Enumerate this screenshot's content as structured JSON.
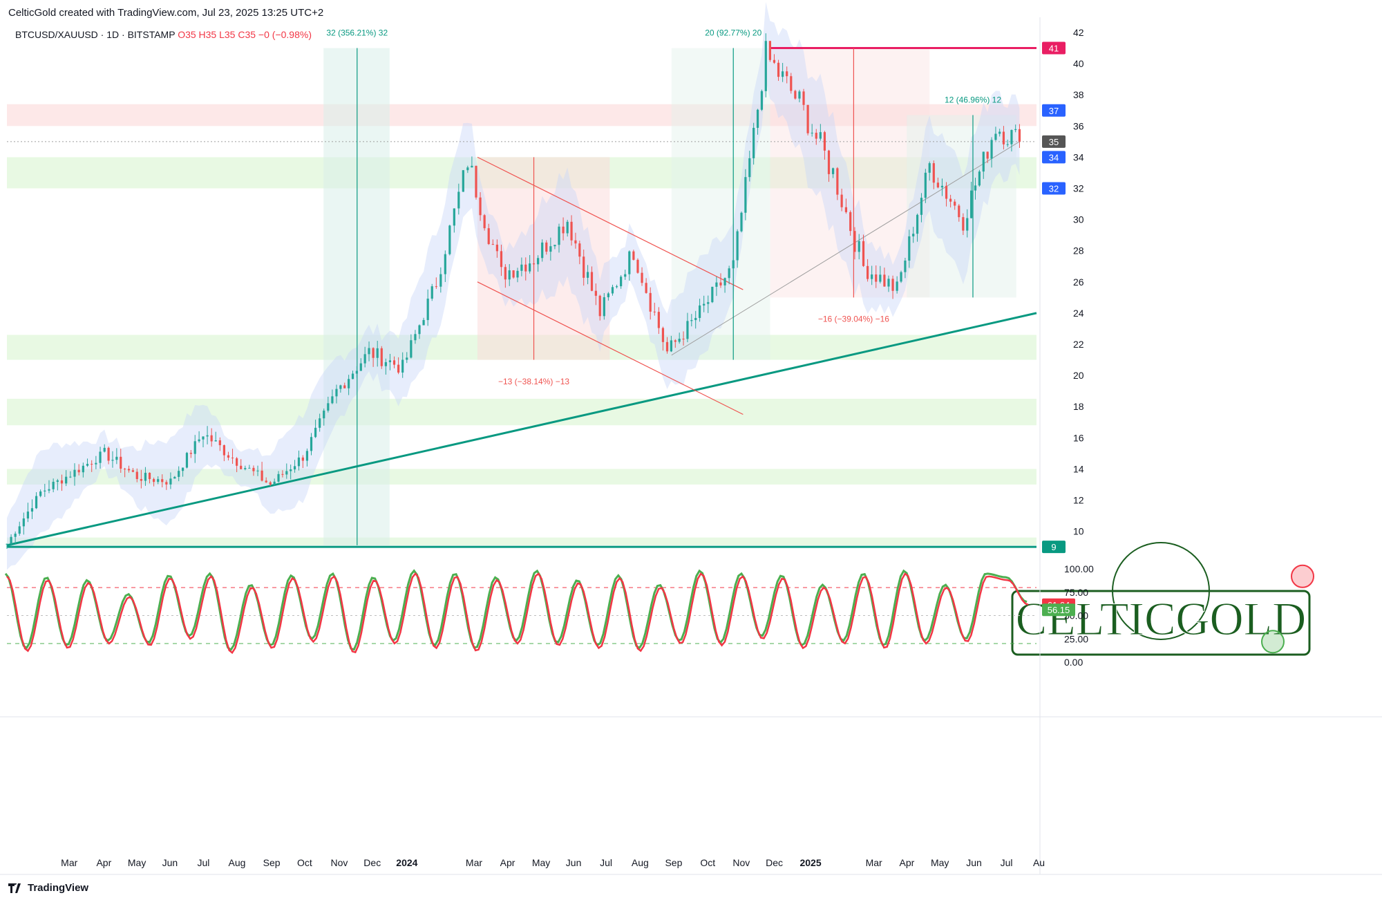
{
  "header": {
    "title": "CelticGold created with TradingView.com, Jul 23, 2025 13:25 UTC+2"
  },
  "symbol_line": {
    "prefix": "BTCUSD/XAUUSD · 1D · BITSTAMP",
    "ohlc": "O35  H35  L35  C35  −0 (−0.98%)"
  },
  "footer": {
    "brand": "TradingView"
  },
  "watermark": {
    "text": "CELTICGOLD"
  },
  "colors": {
    "up": "#26a69a",
    "down": "#ef5350",
    "trend": "#089981",
    "resistance": "#e91e63",
    "green_zone": "#e6f8e0",
    "red_zone": "#fde6e6",
    "band": "#c9d8f8"
  },
  "chart_data": [
    {
      "type": "candlestick",
      "title": "",
      "series_name": "",
      "x_axis": [
        "Mar",
        "Apr",
        "May",
        "Jun",
        "Jul",
        "Aug",
        "Sep",
        "Oct",
        "Nov",
        "Dec",
        "2024",
        "Mar",
        "Apr",
        "May",
        "Jun",
        "Jul",
        "Aug",
        "Sep",
        "Oct",
        "Nov",
        "Dec",
        "2025",
        "Mar",
        "Apr",
        "May",
        "Jun",
        "Jul",
        "Au"
      ],
      "y_ticks": [
        42,
        40,
        38,
        36,
        34,
        32,
        30,
        28,
        26,
        24,
        22,
        20,
        18,
        16,
        14,
        12,
        10
      ],
      "price_badges": [
        {
          "value": "41",
          "color": "#e91e63"
        },
        {
          "value": "37",
          "color": "#2962ff"
        },
        {
          "value": "35",
          "color": "#555555"
        },
        {
          "value": "34",
          "color": "#2962ff"
        },
        {
          "value": "32",
          "color": "#2962ff"
        },
        {
          "value": "9",
          "color": "#089981"
        }
      ],
      "measure_labels": [
        {
          "text": "32 (356.21%) 32"
        },
        {
          "text": "20 (92.77%) 20"
        },
        {
          "text": "12 (46.96%) 12"
        },
        {
          "text": "−13 (−38.14%) −13"
        },
        {
          "text": "−16 (−39.04%) −16"
        }
      ],
      "support_zones": [
        [
          9.1,
          9.6
        ],
        [
          13,
          14
        ],
        [
          16.8,
          18.5
        ],
        [
          21,
          22.6
        ],
        [
          32,
          34
        ]
      ],
      "resistance_zones": [
        [
          36,
          37.4
        ]
      ],
      "resistance_line": 41,
      "trendline_start": 9.1,
      "trendline_end_label": 24,
      "key_points": [
        {
          "date": "2023-01",
          "value": 9.2
        },
        {
          "date": "2023-02",
          "value": 12.5
        },
        {
          "date": "2023-04",
          "value": 15.0
        },
        {
          "date": "2023-05",
          "value": 13.5
        },
        {
          "date": "2023-06",
          "value": 13.2
        },
        {
          "date": "2023-07",
          "value": 16.3
        },
        {
          "date": "2023-08",
          "value": 14.5
        },
        {
          "date": "2023-09",
          "value": 13.0
        },
        {
          "date": "2023-10",
          "value": 14.8
        },
        {
          "date": "2023-11",
          "value": 19.0
        },
        {
          "date": "2023-12",
          "value": 21.5
        },
        {
          "date": "2024-01",
          "value": 20.5
        },
        {
          "date": "2024-02",
          "value": 26.0
        },
        {
          "date": "2024-03",
          "value": 33.8
        },
        {
          "date": "2024-04",
          "value": 26.5
        },
        {
          "date": "2024-05",
          "value": 27.5
        },
        {
          "date": "2024-06",
          "value": 30.0
        },
        {
          "date": "2024-07",
          "value": 24.0
        },
        {
          "date": "2024-08",
          "value": 28.0
        },
        {
          "date": "2024-09",
          "value": 21.5
        },
        {
          "date": "2024-10",
          "value": 24.0
        },
        {
          "date": "2024-11",
          "value": 27.0
        },
        {
          "date": "2024-12",
          "value": 40.5
        },
        {
          "date": "2025-01",
          "value": 37.5
        },
        {
          "date": "2025-02",
          "value": 33.0
        },
        {
          "date": "2025-03",
          "value": 27.0
        },
        {
          "date": "2025-04",
          "value": 25.5
        },
        {
          "date": "2025-05",
          "value": 33.5
        },
        {
          "date": "2025-06",
          "value": 30.0
        },
        {
          "date": "2025-07",
          "value": 36.0
        },
        {
          "date": "2025-07-23",
          "value": 35.0
        }
      ]
    },
    {
      "type": "line",
      "title": "",
      "y_ticks": [
        "100.00",
        "75.00",
        "50.00",
        "25.00",
        "0.00"
      ],
      "levels": [
        80,
        20
      ],
      "value_badges": [
        {
          "value": "61.64",
          "color": "#f23645"
        },
        {
          "value": "56.15",
          "color": "#4caf50"
        }
      ],
      "series": [
        {
          "name": "",
          "color": "#f23645"
        },
        {
          "name": "",
          "color": "#4caf50"
        }
      ],
      "key_points": [
        92,
        12,
        88,
        15,
        85,
        20,
        70,
        18,
        90,
        25,
        92,
        10,
        80,
        15,
        90,
        22,
        92,
        10,
        88,
        20,
        95,
        15,
        92,
        12,
        88,
        20,
        95,
        18,
        85,
        15,
        90,
        12,
        80,
        20,
        95,
        18,
        92,
        25,
        90,
        15,
        80,
        20,
        92,
        15,
        95,
        20,
        80,
        22,
        92,
        88,
        61.6
      ]
    }
  ]
}
